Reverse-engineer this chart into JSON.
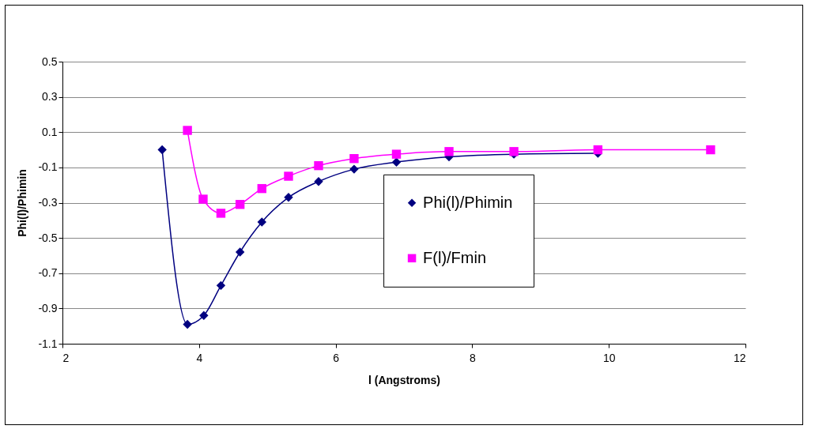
{
  "chart_data": {
    "type": "line",
    "xlabel": "l (Angstroms)",
    "ylabel": "Phi(l)/Phimin",
    "xlim": [
      2,
      12
    ],
    "xticks": [
      2,
      4,
      6,
      8,
      10,
      12
    ],
    "ylim": [
      -1.1,
      0.5
    ],
    "yticks": [
      0.5,
      0.3,
      0.1,
      -0.1,
      -0.3,
      -0.5,
      -0.7,
      -0.9,
      -1.1
    ],
    "grid": "y",
    "legend": "right",
    "series": [
      {
        "name": "Phi(l)/Phimin",
        "color": "#000080",
        "marker": "diamond",
        "x": [
          3.46,
          3.83,
          4.07,
          4.32,
          4.6,
          4.92,
          5.31,
          5.75,
          6.27,
          6.89,
          7.66,
          8.61,
          9.84
        ],
        "values": [
          0.0,
          -0.99,
          -0.94,
          -0.77,
          -0.58,
          -0.41,
          -0.27,
          -0.18,
          -0.11,
          -0.07,
          -0.04,
          -0.025,
          -0.02
        ]
      },
      {
        "name": "F(l)/Fmin",
        "color": "#ff00ff",
        "marker": "square",
        "x": [
          3.83,
          4.06,
          4.32,
          4.6,
          4.92,
          5.31,
          5.75,
          6.27,
          6.89,
          7.66,
          8.61,
          9.84,
          11.49
        ],
        "values": [
          0.11,
          -0.28,
          -0.36,
          -0.31,
          -0.22,
          -0.15,
          -0.09,
          -0.05,
          -0.025,
          -0.01,
          -0.01,
          0.0,
          0.0
        ]
      }
    ]
  }
}
